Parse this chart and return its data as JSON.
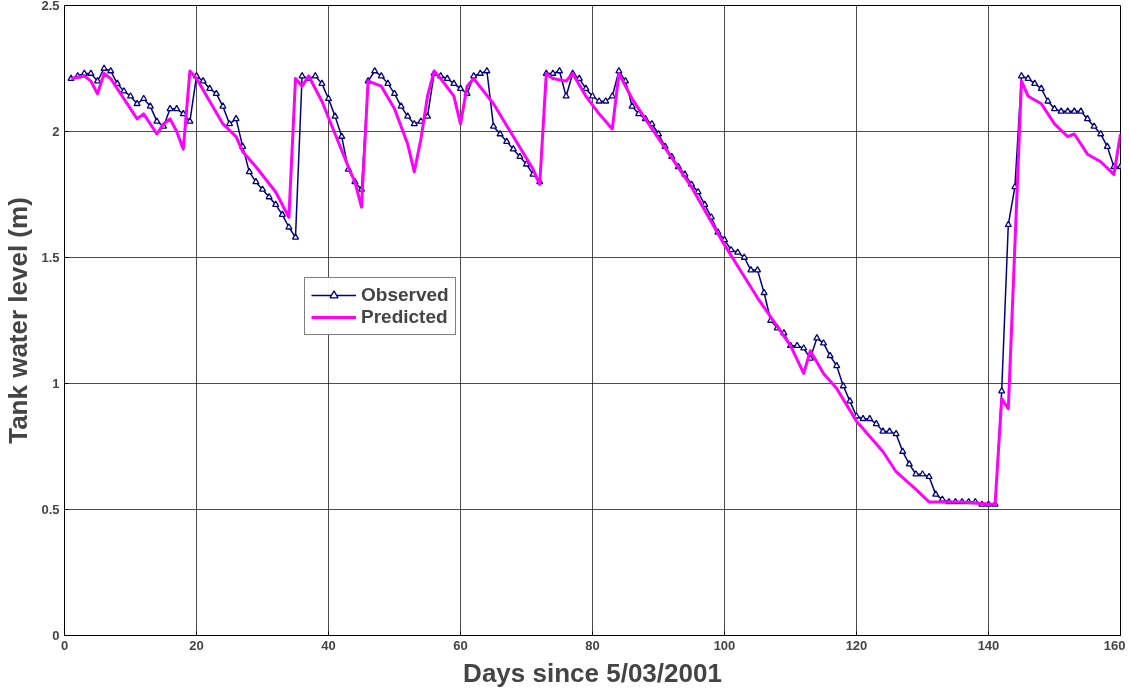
{
  "chart_data": {
    "type": "line",
    "xlabel": "Days since 5/03/2001",
    "ylabel": "Tank water level (m)",
    "xlim": [
      0,
      160
    ],
    "ylim": [
      0,
      2.5
    ],
    "xticks": [
      0,
      20,
      40,
      60,
      80,
      100,
      120,
      140,
      160
    ],
    "yticks": [
      0,
      0.5,
      1,
      1.5,
      2,
      2.5
    ],
    "grid": true,
    "legend": "left",
    "series": [
      {
        "name": "Observed",
        "color": "#000080",
        "marker": "triangle",
        "x": [
          1,
          2,
          3,
          4,
          5,
          6,
          7,
          8,
          9,
          10,
          11,
          12,
          13,
          14,
          15,
          16,
          17,
          18,
          19,
          20,
          21,
          22,
          23,
          24,
          25,
          26,
          27,
          28,
          29,
          30,
          31,
          32,
          33,
          34,
          35,
          36,
          37,
          38,
          39,
          40,
          41,
          42,
          43,
          44,
          45,
          46,
          47,
          48,
          49,
          50,
          51,
          52,
          53,
          54,
          55,
          56,
          57,
          58,
          59,
          60,
          61,
          62,
          63,
          64,
          65,
          66,
          67,
          68,
          69,
          70,
          71,
          72,
          73,
          74,
          75,
          76,
          77,
          78,
          79,
          80,
          81,
          82,
          83,
          84,
          85,
          86,
          87,
          88,
          89,
          90,
          91,
          92,
          93,
          94,
          95,
          96,
          97,
          98,
          99,
          100,
          101,
          102,
          103,
          104,
          105,
          106,
          107,
          108,
          109,
          110,
          111,
          112,
          113,
          114,
          115,
          116,
          117,
          118,
          119,
          120,
          121,
          122,
          123,
          124,
          125,
          126,
          127,
          128,
          129,
          130,
          131,
          132,
          133,
          134,
          135,
          136,
          137,
          138,
          139,
          140,
          141,
          142,
          143,
          144,
          145,
          146,
          147,
          148,
          149,
          150,
          151,
          152,
          153,
          154,
          155,
          156,
          157,
          158,
          159,
          160
        ],
        "values": [
          2.21,
          2.22,
          2.23,
          2.23,
          2.2,
          2.25,
          2.24,
          2.19,
          2.16,
          2.14,
          2.11,
          2.13,
          2.1,
          2.04,
          2.02,
          2.09,
          2.09,
          2.07,
          2.04,
          2.22,
          2.2,
          2.17,
          2.15,
          2.1,
          2.03,
          2.05,
          1.94,
          1.84,
          1.8,
          1.77,
          1.74,
          1.71,
          1.67,
          1.62,
          1.58,
          2.22,
          2.21,
          2.22,
          2.19,
          2.13,
          2.06,
          1.98,
          1.85,
          1.8,
          1.77,
          2.2,
          2.24,
          2.22,
          2.19,
          2.15,
          2.1,
          2.06,
          2.03,
          2.04,
          2.06,
          2.23,
          2.22,
          2.21,
          2.19,
          2.17,
          2.15,
          2.22,
          2.23,
          2.24,
          2.02,
          1.99,
          1.96,
          1.93,
          1.9,
          1.87,
          1.83,
          1.8,
          2.23,
          2.23,
          2.24,
          2.14,
          2.23,
          2.21,
          2.17,
          2.14,
          2.12,
          2.12,
          2.14,
          2.24,
          2.2,
          2.1,
          2.07,
          2.05,
          2.03,
          1.99,
          1.94,
          1.9,
          1.86,
          1.83,
          1.79,
          1.76,
          1.71,
          1.66,
          1.6,
          1.57,
          1.53,
          1.52,
          1.5,
          1.45,
          1.45,
          1.36,
          1.25,
          1.22,
          1.2,
          1.15,
          1.15,
          1.14,
          1.1,
          1.18,
          1.16,
          1.11,
          1.07,
          0.99,
          0.93,
          0.87,
          0.86,
          0.86,
          0.84,
          0.81,
          0.81,
          0.8,
          0.73,
          0.68,
          0.64,
          0.64,
          0.63,
          0.56,
          0.54,
          0.53,
          0.53,
          0.53,
          0.53,
          0.53,
          0.52,
          0.52,
          0.52,
          0.97,
          1.63,
          1.78,
          2.22,
          2.21,
          2.19,
          2.17,
          2.12,
          2.09,
          2.08,
          2.08,
          2.08,
          2.08,
          2.05,
          2.02,
          1.99,
          1.94,
          1.86,
          1.86
        ]
      },
      {
        "name": "Predicted",
        "color": "#ff00ff",
        "marker": "none",
        "x": [
          1,
          3,
          4,
          5,
          6,
          7,
          9,
          11,
          12,
          14,
          15,
          16,
          17,
          18,
          19,
          20,
          22,
          24,
          26,
          27,
          29,
          32,
          34,
          35,
          36,
          37,
          39,
          41,
          43,
          44,
          45,
          46,
          48,
          50,
          52,
          53,
          54,
          55,
          56,
          57,
          59,
          60,
          61,
          62,
          65,
          68,
          71,
          72,
          73,
          74,
          76,
          77,
          79,
          81,
          83,
          84,
          86,
          88,
          95,
          100,
          105,
          110,
          112,
          113,
          115,
          117,
          120,
          124,
          126,
          129,
          131,
          136,
          141,
          142,
          143,
          145,
          146,
          148,
          150,
          152,
          153,
          155,
          157,
          159,
          160
        ],
        "values": [
          2.21,
          2.22,
          2.2,
          2.15,
          2.23,
          2.21,
          2.13,
          2.05,
          2.07,
          1.99,
          2.03,
          2.05,
          2.0,
          1.93,
          2.24,
          2.21,
          2.12,
          2.03,
          1.98,
          1.92,
          1.86,
          1.76,
          1.66,
          2.21,
          2.18,
          2.22,
          2.12,
          1.99,
          1.86,
          1.8,
          1.7,
          2.2,
          2.18,
          2.09,
          1.95,
          1.84,
          1.97,
          2.14,
          2.24,
          2.21,
          2.14,
          2.03,
          2.18,
          2.21,
          2.11,
          1.98,
          1.85,
          1.79,
          2.23,
          2.21,
          2.2,
          2.23,
          2.14,
          2.07,
          2.01,
          2.23,
          2.13,
          2.05,
          1.78,
          1.55,
          1.34,
          1.15,
          1.04,
          1.13,
          1.04,
          0.98,
          0.85,
          0.73,
          0.65,
          0.58,
          0.53,
          0.53,
          0.52,
          0.94,
          0.9,
          2.2,
          2.14,
          2.11,
          2.03,
          1.98,
          1.99,
          1.91,
          1.88,
          1.83,
          1.99
        ]
      }
    ]
  }
}
